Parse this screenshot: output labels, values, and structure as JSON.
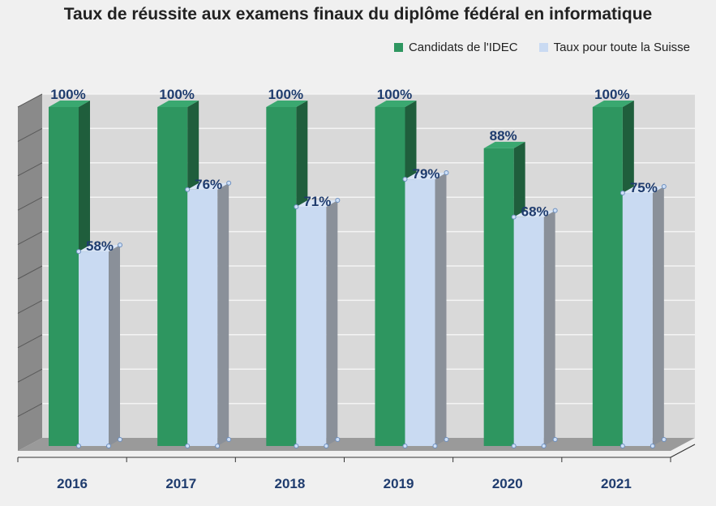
{
  "chart_data": {
    "type": "bar",
    "title": "Taux de réussite aux examens finaux du diplôme fédéral en informatique",
    "categories": [
      "2016",
      "2017",
      "2018",
      "2019",
      "2020",
      "2021"
    ],
    "series": [
      {
        "name": "Candidats de l'IDEC",
        "values": [
          100,
          100,
          100,
          100,
          88,
          100
        ],
        "labels": [
          "100%",
          "100%",
          "100%",
          "100%",
          "88%",
          "100%"
        ],
        "color": "#2e9660"
      },
      {
        "name": "Taux pour toute la Suisse",
        "values": [
          58,
          76,
          71,
          79,
          68,
          75
        ],
        "labels": [
          "58%",
          "76%",
          "71%",
          "79%",
          "68%",
          "75%"
        ],
        "color": "#c9daf2"
      }
    ],
    "ylim": [
      0,
      100
    ],
    "grid": true,
    "legend": "top-right",
    "style": "3d-bar"
  }
}
